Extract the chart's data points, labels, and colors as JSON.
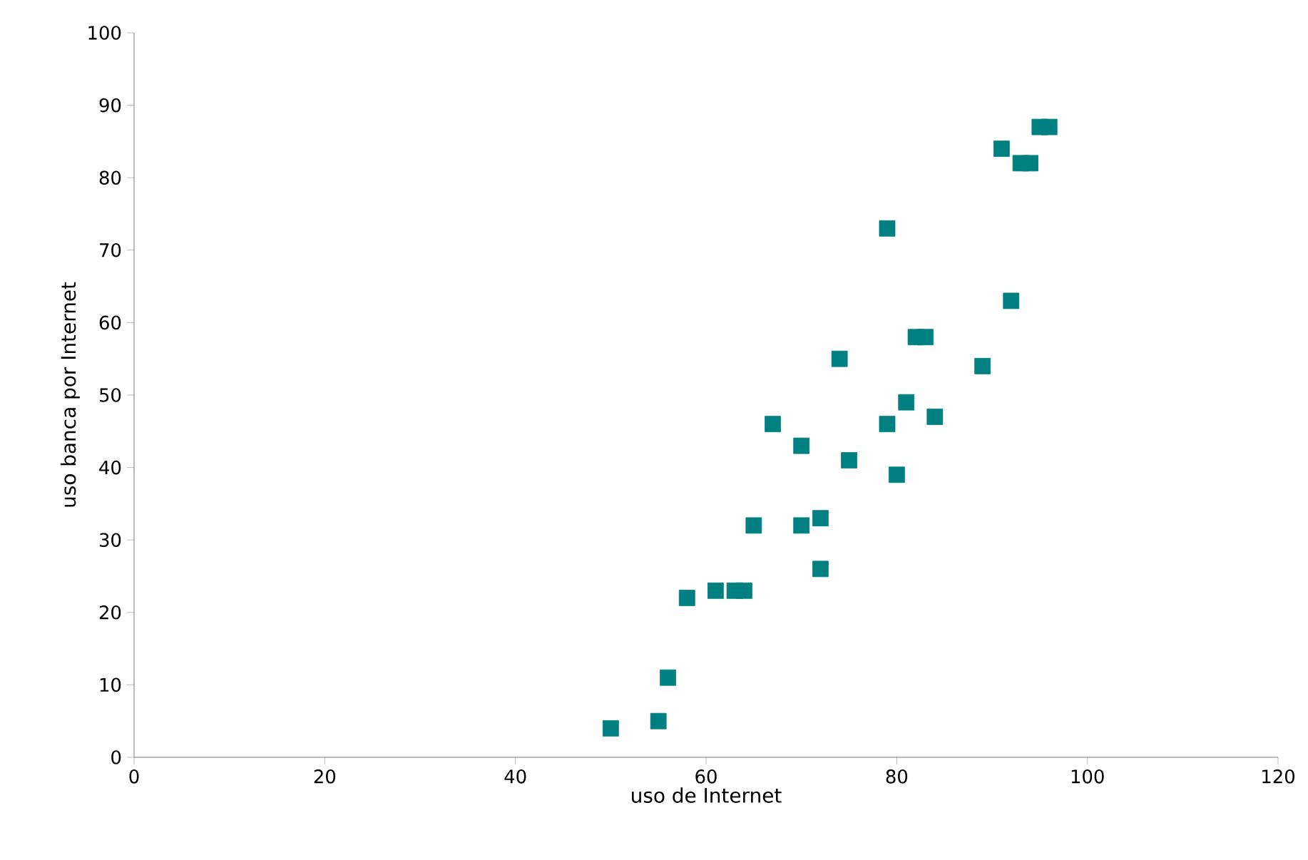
{
  "chart_data": {
    "type": "scatter",
    "xlabel": "uso de Internet",
    "ylabel": "uso banca por Internet",
    "x": [
      50,
      55,
      56,
      58,
      61,
      63,
      64,
      65,
      67,
      70,
      70,
      72,
      72,
      74,
      75,
      79,
      79,
      80,
      81,
      82,
      83,
      84,
      89,
      91,
      92,
      93,
      94,
      95,
      96
    ],
    "values": [
      4,
      5,
      11,
      22,
      23,
      23,
      23,
      32,
      46,
      43,
      32,
      33,
      26,
      55,
      41,
      46,
      73,
      39,
      49,
      58,
      58,
      47,
      54,
      84,
      63,
      82,
      82,
      87,
      87
    ],
    "color": "#008080",
    "marker": "square",
    "xlim": [
      0,
      120
    ],
    "xticks": [
      0,
      20,
      40,
      60,
      80,
      100,
      120
    ],
    "ylim": [
      0,
      100
    ],
    "yticks": [
      0,
      10,
      20,
      30,
      40,
      50,
      60,
      70,
      80,
      90,
      100
    ],
    "grid": false
  }
}
